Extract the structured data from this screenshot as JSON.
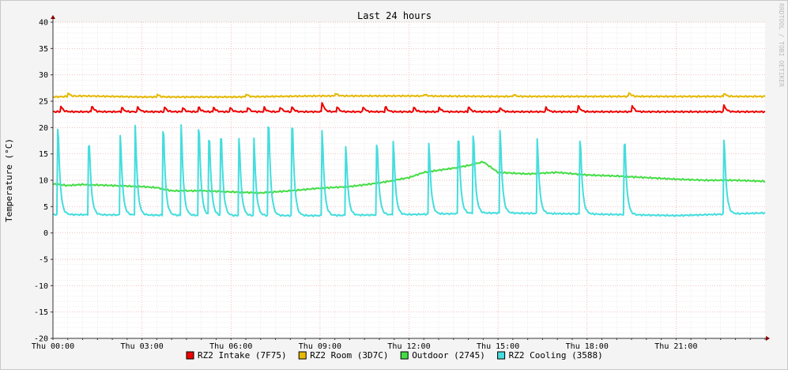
{
  "chart_data": {
    "type": "line",
    "title": "Last 24 hours",
    "ylabel": "Temperature (°C)",
    "watermark": "RRDTOOL / TOBI OETIKER",
    "ylim": [
      -20,
      40
    ],
    "y_ticks": [
      40,
      35,
      30,
      25,
      20,
      15,
      10,
      5,
      0,
      -5,
      -10,
      -15,
      -20
    ],
    "x_range_hours": [
      0,
      24
    ],
    "x_ticks": [
      {
        "hour": 0,
        "label": "Thu 00:00"
      },
      {
        "hour": 3,
        "label": "Thu 03:00"
      },
      {
        "hour": 6,
        "label": "Thu 06:00"
      },
      {
        "hour": 9,
        "label": "Thu 09:00"
      },
      {
        "hour": 12,
        "label": "Thu 12:00"
      },
      {
        "hour": 15,
        "label": "Thu 15:00"
      },
      {
        "hour": 18,
        "label": "Thu 18:00"
      },
      {
        "hour": 21,
        "label": "Thu 21:00"
      }
    ],
    "grid": true,
    "legend_position": "bottom",
    "series": [
      {
        "name": "RZ2 Intake (7F75)",
        "color": "#ee0000",
        "base": [
          [
            0,
            23
          ],
          [
            24,
            23
          ]
        ],
        "spikes": [
          [
            0.25,
            24
          ],
          [
            1.3,
            24
          ],
          [
            2.3,
            23.8
          ],
          [
            2.85,
            23.8
          ],
          [
            3.75,
            23.8
          ],
          [
            4.35,
            23.8
          ],
          [
            4.9,
            23.8
          ],
          [
            5.4,
            23.8
          ],
          [
            5.95,
            23.8
          ],
          [
            6.55,
            23.8
          ],
          [
            7.1,
            23.8
          ],
          [
            7.65,
            23.8
          ],
          [
            8.05,
            23.8
          ],
          [
            9.05,
            24.8
          ],
          [
            9.55,
            24
          ],
          [
            10.45,
            23.8
          ],
          [
            11.2,
            23.8
          ],
          [
            12.15,
            23.8
          ],
          [
            13,
            23.8
          ],
          [
            14,
            23.8
          ],
          [
            15.05,
            23.8
          ],
          [
            16.6,
            23.8
          ],
          [
            17.7,
            24
          ],
          [
            19.5,
            24.2
          ],
          [
            22.6,
            24.2
          ]
        ]
      },
      {
        "name": "RZ2 Room (3D7C)",
        "color": "#e6b800",
        "base": [
          [
            0,
            25.8
          ],
          [
            1,
            26
          ],
          [
            3,
            25.8
          ],
          [
            6,
            25.8
          ],
          [
            9,
            26
          ],
          [
            12,
            26
          ],
          [
            15,
            25.9
          ],
          [
            18,
            25.9
          ],
          [
            21,
            25.9
          ],
          [
            24,
            25.9
          ]
        ],
        "spikes": [
          [
            0.5,
            26.5
          ],
          [
            3.5,
            26.3
          ],
          [
            6.5,
            26.3
          ],
          [
            9.5,
            26.5
          ],
          [
            12.5,
            26.3
          ],
          [
            15.5,
            26.3
          ],
          [
            19.4,
            26.6
          ],
          [
            22.6,
            26.5
          ]
        ]
      },
      {
        "name": "Outdoor (2745)",
        "color": "#44dd44",
        "base": [
          [
            0,
            9.3
          ],
          [
            0.5,
            9
          ],
          [
            1,
            9.2
          ],
          [
            2,
            9
          ],
          [
            3,
            8.8
          ],
          [
            3.5,
            8.6
          ],
          [
            4,
            8
          ],
          [
            5,
            8
          ],
          [
            6,
            7.8
          ],
          [
            7,
            7.6
          ],
          [
            8,
            8
          ],
          [
            9,
            8.5
          ],
          [
            10,
            8.8
          ],
          [
            11,
            9.5
          ],
          [
            12,
            10.5
          ],
          [
            12.5,
            11.5
          ],
          [
            13.5,
            12.3
          ],
          [
            14,
            12.8
          ],
          [
            14.5,
            13.5
          ],
          [
            15,
            11.5
          ],
          [
            16,
            11.2
          ],
          [
            17,
            11.5
          ],
          [
            18,
            11
          ],
          [
            19,
            10.8
          ],
          [
            20,
            10.5
          ],
          [
            21,
            10.2
          ],
          [
            22,
            10
          ],
          [
            23,
            10
          ],
          [
            24,
            9.8
          ]
        ],
        "spikes": []
      },
      {
        "name": "RZ2 Cooling (3588)",
        "color": "#44dddd",
        "base": [
          [
            0,
            3.5
          ],
          [
            6,
            3.3
          ],
          [
            9,
            3.3
          ],
          [
            12,
            3.5
          ],
          [
            15,
            3.8
          ],
          [
            18,
            3.6
          ],
          [
            21,
            3.3
          ],
          [
            24,
            3.8
          ]
        ],
        "spikes": [
          [
            0.15,
            19.5
          ],
          [
            1.2,
            16.5
          ],
          [
            2.25,
            18.5
          ],
          [
            2.75,
            20.5
          ],
          [
            3.7,
            19.3
          ],
          [
            4.3,
            20.5
          ],
          [
            4.9,
            19.5
          ],
          [
            5.25,
            17.5
          ],
          [
            5.65,
            17.8
          ],
          [
            6.25,
            18
          ],
          [
            6.75,
            18
          ],
          [
            7.25,
            20
          ],
          [
            8.05,
            19.8
          ],
          [
            9.05,
            19.5
          ],
          [
            9.85,
            16.5
          ],
          [
            10.9,
            16.5
          ],
          [
            11.45,
            17.5
          ],
          [
            12.65,
            17
          ],
          [
            13.65,
            17.5
          ],
          [
            14.15,
            18.5
          ],
          [
            15.05,
            19.5
          ],
          [
            16.3,
            17.8
          ],
          [
            17.75,
            17.5
          ],
          [
            19.25,
            16.7
          ],
          [
            22.6,
            17.5
          ]
        ]
      }
    ]
  }
}
